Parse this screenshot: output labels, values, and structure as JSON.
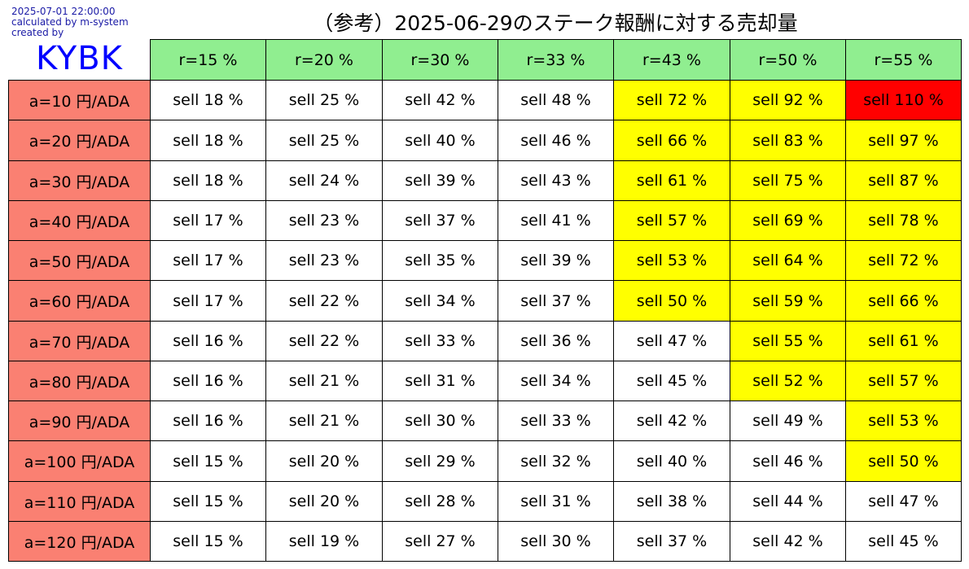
{
  "meta": {
    "timestamp": "2025-07-01 22:00:00",
    "calc_line": "calculated by m-system",
    "created_line": "created by",
    "logo": "KYBK"
  },
  "chart_data": {
    "type": "table",
    "title": "（参考）2025-06-29のステーク報酬に対する売却量",
    "columns": [
      "r=15 %",
      "r=20 %",
      "r=30 %",
      "r=33 %",
      "r=43 %",
      "r=50 %",
      "r=55 %"
    ],
    "rows": [
      {
        "label": "a=10 円/ADA",
        "cells": [
          "sell 18 %",
          "sell 25 %",
          "sell 42 %",
          "sell 48 %",
          "sell 72 %",
          "sell 92 %",
          "sell 110 %"
        ],
        "values": [
          18,
          25,
          42,
          48,
          72,
          92,
          110
        ]
      },
      {
        "label": "a=20 円/ADA",
        "cells": [
          "sell 18 %",
          "sell 25 %",
          "sell 40 %",
          "sell 46 %",
          "sell 66 %",
          "sell 83 %",
          "sell 97 %"
        ],
        "values": [
          18,
          25,
          40,
          46,
          66,
          83,
          97
        ]
      },
      {
        "label": "a=30 円/ADA",
        "cells": [
          "sell 18 %",
          "sell 24 %",
          "sell 39 %",
          "sell 43 %",
          "sell 61 %",
          "sell 75 %",
          "sell 87 %"
        ],
        "values": [
          18,
          24,
          39,
          43,
          61,
          75,
          87
        ]
      },
      {
        "label": "a=40 円/ADA",
        "cells": [
          "sell 17 %",
          "sell 23 %",
          "sell 37 %",
          "sell 41 %",
          "sell 57 %",
          "sell 69 %",
          "sell 78 %"
        ],
        "values": [
          17,
          23,
          37,
          41,
          57,
          69,
          78
        ]
      },
      {
        "label": "a=50 円/ADA",
        "cells": [
          "sell 17 %",
          "sell 23 %",
          "sell 35 %",
          "sell 39 %",
          "sell 53 %",
          "sell 64 %",
          "sell 72 %"
        ],
        "values": [
          17,
          23,
          35,
          39,
          53,
          64,
          72
        ]
      },
      {
        "label": "a=60 円/ADA",
        "cells": [
          "sell 17 %",
          "sell 22 %",
          "sell 34 %",
          "sell 37 %",
          "sell 50 %",
          "sell 59 %",
          "sell 66 %"
        ],
        "values": [
          17,
          22,
          34,
          37,
          50,
          59,
          66
        ]
      },
      {
        "label": "a=70 円/ADA",
        "cells": [
          "sell 16 %",
          "sell 22 %",
          "sell 33 %",
          "sell 36 %",
          "sell 47 %",
          "sell 55 %",
          "sell 61 %"
        ],
        "values": [
          16,
          22,
          33,
          36,
          47,
          55,
          61
        ]
      },
      {
        "label": "a=80 円/ADA",
        "cells": [
          "sell 16 %",
          "sell 21 %",
          "sell 31 %",
          "sell 34 %",
          "sell 45 %",
          "sell 52 %",
          "sell 57 %"
        ],
        "values": [
          16,
          21,
          31,
          34,
          45,
          52,
          57
        ]
      },
      {
        "label": "a=90 円/ADA",
        "cells": [
          "sell 16 %",
          "sell 21 %",
          "sell 30 %",
          "sell 33 %",
          "sell 42 %",
          "sell 49 %",
          "sell 53 %"
        ],
        "values": [
          16,
          21,
          30,
          33,
          42,
          49,
          53
        ]
      },
      {
        "label": "a=100 円/ADA",
        "cells": [
          "sell 15 %",
          "sell 20 %",
          "sell 29 %",
          "sell 32 %",
          "sell 40 %",
          "sell 46 %",
          "sell 50 %"
        ],
        "values": [
          15,
          20,
          29,
          32,
          40,
          46,
          50
        ]
      },
      {
        "label": "a=110 円/ADA",
        "cells": [
          "sell 15 %",
          "sell 20 %",
          "sell 28 %",
          "sell 31 %",
          "sell 38 %",
          "sell 44 %",
          "sell 47 %"
        ],
        "values": [
          15,
          20,
          28,
          31,
          38,
          44,
          47
        ]
      },
      {
        "label": "a=120 円/ADA",
        "cells": [
          "sell 15 %",
          "sell 19 %",
          "sell 27 %",
          "sell 30 %",
          "sell 37 %",
          "sell 42 %",
          "sell 45 %"
        ],
        "values": [
          15,
          19,
          27,
          30,
          37,
          42,
          45
        ]
      }
    ],
    "colors": {
      "column_header": "#90ee90",
      "row_header": "#fa8072",
      "below_50": "#ffffff",
      "50_to_100": "#ffff00",
      "above_100": "#ff0000"
    }
  }
}
